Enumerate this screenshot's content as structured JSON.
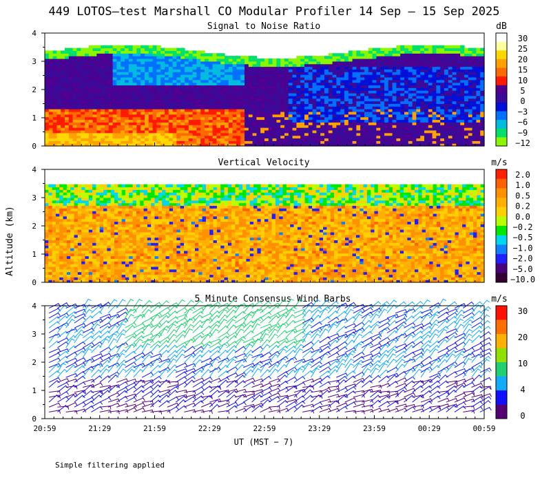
{
  "title": "449 LOTOS—test Marshall CO Modular Profiler 14 Sep — 15 Sep 2025",
  "footnote": "Simple filtering applied",
  "colors": {
    "snr_scale": [
      "#8af700",
      "#00e06a",
      "#00bde0",
      "#0070ff",
      "#0010d8",
      "#3a0a99",
      "#500090",
      "#ff1a00",
      "#ff6a00",
      "#ffa200",
      "#ffd800",
      "#ffffa0",
      "#ffffff"
    ],
    "vv_scale": [
      "#330033",
      "#4a007a",
      "#2020ff",
      "#1080ff",
      "#00d8f0",
      "#00e800",
      "#b8ff00",
      "#ffd000",
      "#ffb000",
      "#ff9000",
      "#ff6000",
      "#ff2000"
    ],
    "wind_scale": [
      "#550077",
      "#1010ff",
      "#10aaff",
      "#20d070",
      "#90e000",
      "#ffb000",
      "#ff7000",
      "#ff1000"
    ]
  },
  "chart_data": [
    {
      "type": "heatmap",
      "title": "Signal to Noise Ratio",
      "ylabel": "Altitude (km)",
      "ylim": [
        0,
        4
      ],
      "yticks": [
        "0",
        "1",
        "2",
        "3",
        "4"
      ],
      "xlabel": "UT  (MST − 7)",
      "xticks": [
        "20:59",
        "21:29",
        "21:59",
        "22:29",
        "22:59",
        "23:29",
        "23:59",
        "00:29",
        "00:59"
      ],
      "colorbar_unit": "dB",
      "colorbar_labels": [
        "30",
        "25",
        "20",
        "15",
        "10",
        "5",
        "0",
        "−3",
        "−6",
        "−9",
        "−12"
      ]
    },
    {
      "type": "heatmap",
      "title": "Vertical Velocity",
      "ylabel": "Altitude (km)",
      "ylim": [
        0,
        4
      ],
      "yticks": [
        "0",
        "1",
        "2",
        "3",
        "4"
      ],
      "xlabel": "UT  (MST − 7)",
      "xticks": [
        "20:59",
        "21:29",
        "21:59",
        "22:29",
        "22:59",
        "23:29",
        "23:59",
        "00:29",
        "00:59"
      ],
      "colorbar_unit": "m/s",
      "colorbar_labels": [
        "2.0",
        "1.0",
        "0.5",
        "0.2",
        "0.0",
        "−0.2",
        "−0.5",
        "−1.0",
        "−2.0",
        "−5.0",
        "−10.0"
      ]
    },
    {
      "type": "wind_barbs",
      "title": "5 Minute Consensus Wind Barbs",
      "ylabel": "Altitude (km)",
      "ylim": [
        0,
        4
      ],
      "yticks": [
        "0",
        "1",
        "2",
        "3",
        "4"
      ],
      "xlabel": "UT  (MST − 7)",
      "xticks": [
        "20:59",
        "21:29",
        "21:59",
        "22:29",
        "22:59",
        "23:29",
        "23:59",
        "00:29",
        "00:59"
      ],
      "colorbar_unit": "m/s",
      "colorbar_labels": [
        "30",
        "20",
        "10",
        "4",
        "0"
      ]
    }
  ]
}
